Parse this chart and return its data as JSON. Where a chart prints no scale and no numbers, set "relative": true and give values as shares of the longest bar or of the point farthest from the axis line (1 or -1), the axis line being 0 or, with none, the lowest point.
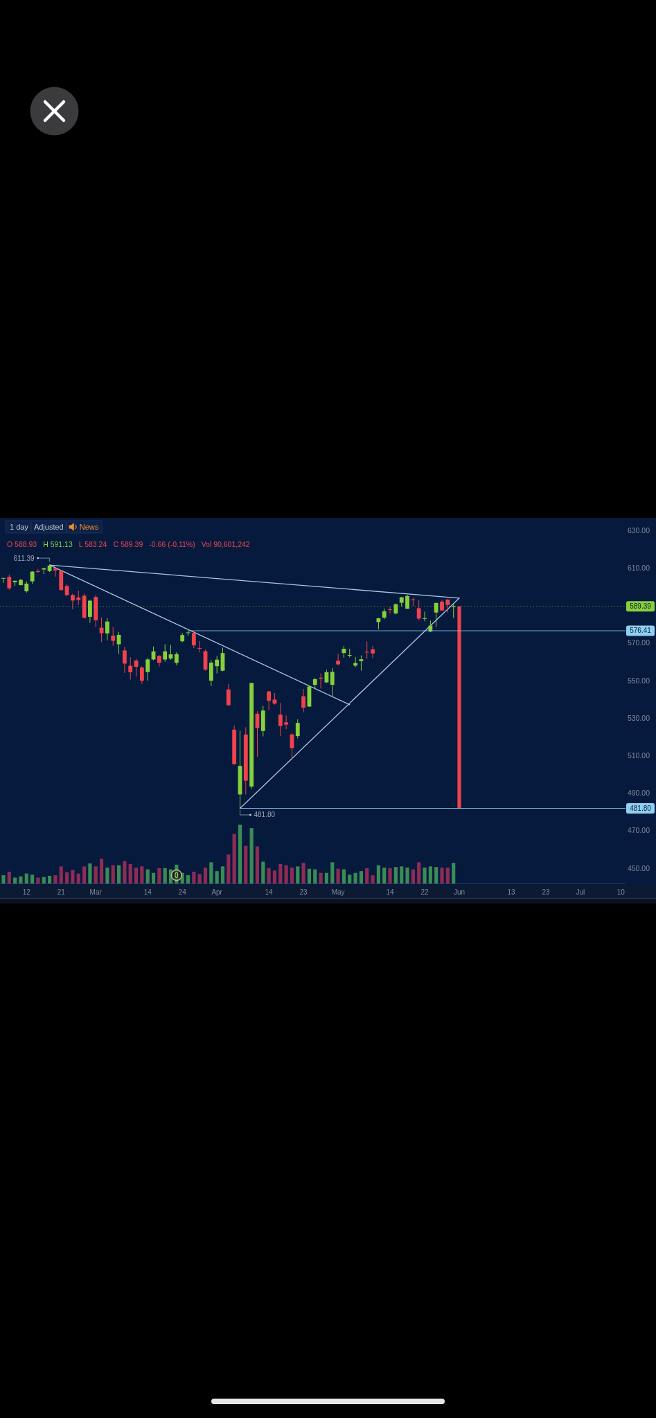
{
  "chart_data": [
    {
      "type": "candlestick",
      "categories": [
        null,
        null,
        null,
        null,
        "12",
        null,
        null,
        null,
        null,
        null,
        "21",
        null,
        null,
        null,
        null,
        null,
        "Mar",
        null,
        null,
        null,
        null,
        null,
        null,
        null,
        null,
        "14",
        null,
        null,
        null,
        null,
        null,
        "24",
        null,
        null,
        null,
        null,
        null,
        "Apr",
        null,
        null,
        null,
        null,
        null,
        null,
        null,
        null,
        "14",
        null,
        null,
        null,
        null,
        null,
        "23",
        null,
        null,
        null,
        null,
        null,
        "May",
        null,
        null,
        null,
        null,
        null,
        null,
        null,
        null,
        "14",
        null,
        null,
        null,
        null,
        null,
        "22",
        null,
        null,
        null,
        null,
        null,
        "Jun",
        null,
        null,
        null,
        null,
        null,
        null,
        null,
        null,
        "13",
        null,
        null,
        null,
        null,
        null,
        "23",
        null,
        null,
        null,
        null,
        null,
        "Jul",
        null,
        null,
        null,
        null,
        null,
        null,
        "10"
      ],
      "ohlc": [
        [
          604.2,
          604.6,
          601.9,
          604.5
        ],
        [
          605.1,
          606.3,
          598.2,
          599.0
        ],
        [
          602.2,
          603.1,
          600.3,
          603.0
        ],
        [
          600.7,
          604.0,
          600.6,
          603.5
        ],
        [
          597.4,
          602.7,
          596.7,
          601.5
        ],
        [
          602.7,
          608.1,
          601.4,
          607.9
        ],
        [
          608.1,
          609.2,
          607.2,
          607.9
        ],
        [
          609.0,
          609.7,
          606.6,
          609.7
        ],
        [
          608.2,
          611.39,
          607.7,
          611.1
        ],
        [
          609.7,
          609.8,
          605.2,
          608.5
        ],
        [
          608.3,
          608.5,
          597.7,
          598.1
        ],
        [
          600.2,
          601.2,
          594.7,
          595.4
        ],
        [
          595.4,
          596.1,
          587.8,
          592.5
        ],
        [
          594.1,
          597.8,
          590.1,
          592.8
        ],
        [
          595.1,
          596.2,
          582.9,
          583.3
        ],
        [
          583.8,
          592.9,
          580.7,
          592.4
        ],
        [
          594.4,
          595.5,
          578.2,
          582.0
        ],
        [
          578.0,
          583.6,
          570.5,
          575.1
        ],
        [
          575.0,
          583.1,
          571.4,
          581.3
        ],
        [
          573.8,
          578.4,
          568.4,
          571.0
        ],
        [
          569.2,
          575.7,
          563.9,
          574.2
        ],
        [
          565.9,
          567.8,
          553.9,
          558.9
        ],
        [
          557.7,
          562.3,
          550.4,
          554.3
        ],
        [
          560.5,
          561.4,
          552.0,
          557.2
        ],
        [
          556.8,
          557.4,
          548.0,
          549.8
        ],
        [
          554.4,
          562.1,
          549.8,
          561.1
        ],
        [
          561.1,
          568.0,
          560.7,
          565.4
        ],
        [
          563.1,
          563.3,
          557.4,
          559.3
        ],
        [
          561.1,
          569.2,
          559.9,
          565.4
        ],
        [
          561.6,
          568.9,
          560.9,
          563.8
        ],
        [
          559.3,
          564.9,
          558.0,
          564.0
        ],
        [
          570.8,
          575.2,
          570.2,
          574.1
        ],
        [
          575.3,
          576.41,
          573.7,
          575.5
        ],
        [
          575.2,
          576.3,
          567.2,
          568.6
        ],
        [
          567.2,
          570.9,
          564.9,
          567.1
        ],
        [
          565.5,
          566.3,
          555.1,
          555.7
        ],
        [
          549.8,
          560.7,
          546.9,
          559.4
        ],
        [
          557.5,
          562.9,
          553.7,
          561.0
        ],
        [
          555.1,
          567.4,
          554.8,
          564.5
        ],
        [
          545.1,
          548.0,
          536.7,
          536.7
        ],
        [
          523.7,
          525.9,
          505.1,
          505.3
        ],
        [
          489.2,
          523.2,
          481.8,
          504.4
        ],
        [
          521.1,
          525.0,
          489.2,
          496.5
        ],
        [
          493.4,
          548.6,
          492.1,
          548.6
        ],
        [
          532.2,
          533.5,
          509.3,
          524.6
        ],
        [
          523.0,
          536.4,
          520.1,
          533.9
        ],
        [
          544.1,
          544.3,
          533.9,
          539.1
        ],
        [
          539.7,
          543.2,
          537.0,
          537.6
        ],
        [
          531.7,
          537.9,
          520.3,
          525.7
        ],
        [
          527.6,
          531.2,
          523.9,
          526.4
        ],
        [
          521.2,
          521.7,
          507.5,
          513.9
        ],
        [
          520.3,
          529.2,
          519.1,
          527.3
        ],
        [
          541.5,
          545.4,
          533.0,
          535.4
        ],
        [
          536.0,
          547.1,
          535.9,
          546.7
        ],
        [
          547.6,
          551.2,
          545.2,
          550.6
        ],
        [
          551.4,
          553.6,
          545.6,
          550.9
        ],
        [
          548.9,
          555.5,
          548.6,
          554.3
        ],
        [
          547.6,
          556.5,
          541.5,
          554.5
        ],
        [
          560.4,
          564.1,
          557.9,
          558.5
        ],
        [
          564.5,
          568.3,
          562.0,
          566.8
        ],
        [
          563.1,
          566.8,
          562.2,
          563.5
        ],
        [
          557.8,
          562.5,
          557.0,
          559.2
        ],
        [
          560.2,
          563.3,
          555.1,
          561.2
        ],
        [
          565.2,
          570.7,
          561.5,
          565.1
        ],
        [
          566.5,
          568.3,
          561.8,
          564.3
        ],
        [
          581.0,
          583.4,
          577.1,
          583.0
        ],
        [
          583.4,
          588.2,
          582.6,
          586.8
        ],
        [
          587.8,
          589.0,
          585.5,
          587.6
        ],
        [
          585.6,
          591.0,
          585.1,
          590.5
        ],
        [
          591.3,
          594.5,
          589.3,
          594.2
        ],
        [
          588.1,
          595.5,
          588.1,
          594.9
        ],
        [
          593.1,
          594.1,
          589.6,
          592.9
        ],
        [
          588.4,
          592.6,
          581.8,
          582.9
        ],
        [
          582.7,
          586.6,
          581.4,
          583.1
        ],
        [
          576.0,
          581.8,
          575.6,
          579.1
        ],
        [
          586.1,
          591.3,
          578.4,
          591.2
        ],
        [
          591.9,
          592.7,
          587.0,
          587.2
        ],
        [
          593.0,
          593.2,
          586.1,
          590.1
        ],
        [
          588.93,
          591.13,
          583.24,
          589.39
        ],
        null,
        null,
        null,
        null,
        null,
        null,
        null,
        null,
        null,
        null,
        null,
        null,
        null,
        null,
        null,
        null,
        null,
        null,
        null,
        null,
        null,
        null,
        null,
        null,
        null,
        null,
        null,
        null,
        null
      ],
      "colors": [
        "#86d03c",
        "#f0424c",
        "#86d03c",
        "#86d03c",
        "#86d03c",
        "#86d03c",
        "#f0424c",
        "#86d03c",
        "#86d03c",
        "#f0424c",
        "#f0424c",
        "#f0424c",
        "#f0424c",
        "#f0424c",
        "#f0424c",
        "#86d03c",
        "#f0424c",
        "#f0424c",
        "#86d03c",
        "#f0424c",
        "#86d03c",
        "#f0424c",
        "#f0424c",
        "#f0424c",
        "#f0424c",
        "#86d03c",
        "#86d03c",
        "#f0424c",
        "#86d03c",
        "#86d03c",
        "#86d03c",
        "#86d03c",
        "#86d03c",
        "#f0424c",
        "#f0424c",
        "#f0424c",
        "#86d03c",
        "#86d03c",
        "#86d03c",
        "#f0424c",
        "#f0424c",
        "#86d03c",
        "#f0424c",
        "#86d03c",
        "#f0424c",
        "#86d03c",
        "#f0424c",
        "#f0424c",
        "#f0424c",
        "#f0424c",
        "#f0424c",
        "#86d03c",
        "#f0424c",
        "#86d03c",
        "#86d03c",
        "#f0424c",
        "#86d03c",
        "#86d03c",
        "#f0424c",
        "#86d03c",
        "#86d03c",
        "#86d03c",
        "#86d03c",
        "#f0424c",
        "#f0424c",
        "#86d03c",
        "#86d03c",
        "#f0424c",
        "#86d03c",
        "#86d03c",
        "#86d03c",
        "#f0424c",
        "#f0424c",
        "#86d03c",
        "#86d03c",
        "#86d03c",
        "#f0424c",
        "#f0424c",
        "#86d03c",
        null,
        null,
        null,
        null,
        null,
        null,
        null,
        null,
        null,
        null,
        null,
        null,
        null,
        null,
        null,
        null,
        null,
        null,
        null,
        null,
        null,
        null,
        null,
        null,
        null,
        null,
        null,
        null,
        null
      ],
      "ylim": [
        450,
        636.5
      ],
      "yticks": [
        {
          "value": 630,
          "label": "630.00"
        },
        {
          "value": 610,
          "label": "610.00"
        },
        {
          "value": 570,
          "label": "570.00"
        },
        {
          "value": 550,
          "label": "550.00"
        },
        {
          "value": 530,
          "label": "530.00"
        },
        {
          "value": 510,
          "label": "510.00"
        },
        {
          "value": 490,
          "label": "490.00"
        },
        {
          "value": 470,
          "label": "470.00"
        },
        {
          "value": 450,
          "label": "450.00"
        }
      ],
      "series": [
        {
          "type": "line",
          "color": "#a9c6e4",
          "values": [
            null,
            null,
            null,
            null,
            null,
            null,
            null,
            null,
            611.4,
            null,
            null,
            null,
            null,
            null,
            null,
            null,
            null,
            null,
            null,
            null,
            null,
            null,
            null,
            null,
            null,
            null,
            null,
            null,
            null,
            null,
            null,
            null,
            null,
            null,
            null,
            null,
            null,
            null,
            null,
            null,
            null,
            null,
            null,
            null,
            null,
            null,
            null,
            null,
            null,
            null,
            null,
            null,
            null,
            null,
            null,
            null,
            null,
            null,
            null,
            null,
            null,
            null,
            null,
            null,
            null,
            null,
            null,
            null,
            null,
            null,
            null,
            null,
            null,
            null,
            null,
            null,
            null,
            null,
            null,
            593.8,
            null,
            null,
            null,
            null,
            null,
            null,
            null,
            null,
            null,
            null,
            null,
            null,
            null,
            null,
            null,
            null,
            null,
            null,
            null,
            null,
            null,
            null,
            null,
            null,
            null,
            null,
            null,
            null
          ]
        },
        {
          "type": "line",
          "color": "#a9c6e4",
          "values": [
            null,
            null,
            null,
            null,
            null,
            null,
            null,
            null,
            611.4,
            null,
            null,
            null,
            null,
            null,
            null,
            null,
            null,
            null,
            null,
            null,
            null,
            null,
            null,
            null,
            null,
            null,
            null,
            null,
            null,
            null,
            null,
            null,
            null,
            null,
            null,
            null,
            null,
            null,
            null,
            null,
            null,
            null,
            null,
            null,
            null,
            null,
            null,
            null,
            null,
            null,
            null,
            null,
            null,
            null,
            null,
            null,
            null,
            null,
            null,
            null,
            537.0,
            null,
            null,
            null,
            null,
            null,
            null,
            null,
            null,
            null,
            null,
            null,
            null,
            null,
            null,
            null,
            null,
            null,
            null,
            null,
            null,
            null,
            null,
            null,
            null,
            null,
            null,
            null,
            null,
            null,
            null,
            null,
            null,
            null,
            null,
            null,
            null,
            null,
            null,
            null,
            null,
            null,
            null,
            null,
            null,
            null,
            null,
            null
          ]
        },
        {
          "type": "line",
          "color": "#a9c6e4",
          "values": [
            null,
            null,
            null,
            null,
            null,
            null,
            null,
            null,
            null,
            null,
            null,
            null,
            null,
            null,
            null,
            null,
            null,
            null,
            null,
            null,
            null,
            null,
            null,
            null,
            null,
            null,
            null,
            null,
            null,
            null,
            null,
            null,
            null,
            null,
            null,
            null,
            null,
            null,
            null,
            null,
            null,
            481.8,
            null,
            null,
            null,
            null,
            null,
            null,
            null,
            null,
            null,
            null,
            null,
            null,
            null,
            null,
            null,
            null,
            null,
            null,
            null,
            null,
            null,
            null,
            null,
            null,
            null,
            null,
            null,
            null,
            null,
            null,
            null,
            null,
            null,
            null,
            null,
            null,
            null,
            593.8,
            null,
            null,
            null,
            null,
            null,
            null,
            null,
            null,
            null,
            null,
            null,
            null,
            null,
            null,
            null,
            null,
            null,
            null,
            null,
            null,
            null,
            null,
            null,
            null,
            null,
            null,
            null,
            null
          ]
        },
        {
          "type": "bar",
          "color": "#f0424c",
          "base": [
            null,
            null,
            null,
            null,
            null,
            null,
            null,
            null,
            null,
            null,
            null,
            null,
            null,
            null,
            null,
            null,
            null,
            null,
            null,
            null,
            null,
            null,
            null,
            null,
            null,
            null,
            null,
            null,
            null,
            null,
            null,
            null,
            null,
            null,
            null,
            null,
            null,
            null,
            null,
            null,
            null,
            null,
            null,
            null,
            null,
            null,
            null,
            null,
            null,
            null,
            null,
            null,
            null,
            null,
            null,
            null,
            null,
            null,
            null,
            null,
            null,
            null,
            null,
            null,
            null,
            null,
            null,
            null,
            null,
            null,
            null,
            null,
            null,
            null,
            null,
            null,
            null,
            null,
            null,
            481.8,
            null,
            null,
            null,
            null,
            null,
            null,
            null,
            null,
            null,
            null,
            null,
            null,
            null,
            null,
            null,
            null,
            null,
            null,
            null,
            null,
            null,
            null,
            null,
            null,
            null,
            null,
            null,
            null
          ],
          "values": [
            null,
            null,
            null,
            null,
            null,
            null,
            null,
            null,
            null,
            null,
            null,
            null,
            null,
            null,
            null,
            null,
            null,
            null,
            null,
            null,
            null,
            null,
            null,
            null,
            null,
            null,
            null,
            null,
            null,
            null,
            null,
            null,
            null,
            null,
            null,
            null,
            null,
            null,
            null,
            null,
            null,
            null,
            null,
            null,
            null,
            null,
            null,
            null,
            null,
            null,
            null,
            null,
            null,
            null,
            null,
            null,
            null,
            null,
            null,
            null,
            null,
            null,
            null,
            null,
            null,
            null,
            null,
            null,
            null,
            null,
            null,
            null,
            null,
            null,
            null,
            null,
            null,
            null,
            null,
            107.6,
            null,
            null,
            null,
            null,
            null,
            null,
            null,
            null,
            null,
            null,
            null,
            null,
            null,
            null,
            null,
            null,
            null,
            null,
            null,
            null,
            null,
            null,
            null,
            null,
            null,
            null,
            null,
            null
          ]
        }
      ],
      "ref_lines": [
        {
          "axis": "y",
          "value": 589.39,
          "label": "589.39",
          "color": "#86d03c",
          "line_style": "dotted"
        },
        {
          "axis": "y",
          "value": 576.41,
          "label": "576.41",
          "color": "#8fd0f2"
        },
        {
          "axis": "y",
          "value": 481.8,
          "label": "481.80",
          "color": "#8fd0f2"
        }
      ],
      "annotations": [
        "1 day",
        "Adjusted",
        "News",
        "O 588.93",
        "H 591.13",
        "L 583.24",
        "C 589.39",
        "-0.66 (-0.11%)",
        "Vol 90,601,242",
        "611.39",
        "481.80"
      ]
    },
    {
      "type": "bar",
      "relative": true,
      "categories": [
        null,
        null,
        null,
        null,
        null,
        null,
        null,
        null,
        null,
        null,
        null,
        null,
        null,
        null,
        null,
        null,
        null,
        null,
        null,
        null,
        null,
        null,
        null,
        null,
        null,
        null,
        null,
        null,
        null,
        null,
        null,
        null,
        null,
        null,
        null,
        null,
        null,
        null,
        null,
        null,
        null,
        null,
        null,
        null,
        null,
        null,
        null,
        null,
        null,
        null,
        null,
        null,
        null,
        null,
        null,
        null,
        null,
        null,
        null,
        null,
        null,
        null,
        null,
        null,
        null,
        null,
        null,
        null,
        null,
        null,
        null,
        null,
        null,
        null,
        null,
        null,
        null,
        null,
        null,
        null,
        null,
        null,
        null,
        null,
        null,
        null,
        null,
        null,
        null,
        null,
        null,
        null,
        null,
        null,
        null,
        null,
        null,
        null,
        null,
        null,
        null,
        null,
        null,
        null,
        null,
        null,
        null,
        null
      ],
      "values": [
        0.14,
        0.2,
        0.1,
        0.12,
        0.17,
        0.15,
        0.1,
        0.11,
        0.13,
        0.14,
        0.29,
        0.19,
        0.23,
        0.17,
        0.29,
        0.34,
        0.29,
        0.42,
        0.27,
        0.31,
        0.31,
        0.38,
        0.33,
        0.27,
        0.29,
        0.24,
        0.18,
        0.26,
        0.26,
        0.24,
        0.32,
        0.18,
        0.14,
        0.2,
        0.16,
        0.27,
        0.36,
        0.21,
        0.29,
        0.49,
        0.84,
        1,
        0.64,
        0.94,
        0.63,
        0.37,
        0.26,
        0.22,
        0.33,
        0.31,
        0.27,
        0.29,
        0.35,
        0.25,
        0.24,
        0.18,
        0.18,
        0.36,
        0.25,
        0.24,
        0.15,
        0.18,
        0.21,
        0.26,
        0.14,
        0.31,
        0.27,
        0.26,
        0.28,
        0.29,
        0.27,
        0.24,
        0.36,
        0.27,
        0.29,
        0.28,
        0.27,
        0.27,
        0.35,
        null,
        null,
        null,
        null,
        null,
        null,
        null,
        null,
        null,
        null,
        null,
        null,
        null,
        null,
        null,
        null,
        null,
        null,
        null,
        null,
        null,
        null,
        null,
        null,
        null,
        null,
        null,
        null,
        null
      ],
      "colors": [
        "#3a8c55",
        "#8e2c55",
        "#3a8c55",
        "#3a8c55",
        "#3a8c55",
        "#3a8c55",
        "#8e2c55",
        "#3a8c55",
        "#3a8c55",
        "#8e2c55",
        "#8e2c55",
        "#8e2c55",
        "#8e2c55",
        "#8e2c55",
        "#8e2c55",
        "#3a8c55",
        "#8e2c55",
        "#8e2c55",
        "#3a8c55",
        "#8e2c55",
        "#3a8c55",
        "#8e2c55",
        "#8e2c55",
        "#8e2c55",
        "#8e2c55",
        "#3a8c55",
        "#3a8c55",
        "#8e2c55",
        "#3a8c55",
        "#3a8c55",
        "#3a8c55",
        "#3a8c55",
        "#3a8c55",
        "#8e2c55",
        "#8e2c55",
        "#8e2c55",
        "#3a8c55",
        "#3a8c55",
        "#3a8c55",
        "#8e2c55",
        "#8e2c55",
        "#3a8c55",
        "#8e2c55",
        "#3a8c55",
        "#8e2c55",
        "#3a8c55",
        "#8e2c55",
        "#8e2c55",
        "#8e2c55",
        "#8e2c55",
        "#8e2c55",
        "#3a8c55",
        "#8e2c55",
        "#3a8c55",
        "#3a8c55",
        "#8e2c55",
        "#3a8c55",
        "#3a8c55",
        "#8e2c55",
        "#3a8c55",
        "#3a8c55",
        "#3a8c55",
        "#3a8c55",
        "#8e2c55",
        "#8e2c55",
        "#3a8c55",
        "#3a8c55",
        "#8e2c55",
        "#3a8c55",
        "#3a8c55",
        "#3a8c55",
        "#8e2c55",
        "#8e2c55",
        "#3a8c55",
        "#3a8c55",
        "#3a8c55",
        "#8e2c55",
        "#8e2c55",
        "#3a8c55",
        null,
        null,
        null,
        null,
        null,
        null,
        null,
        null,
        null,
        null,
        null,
        null,
        null,
        null,
        null,
        null,
        null,
        null,
        null,
        null,
        null,
        null,
        null,
        null,
        null,
        null,
        null,
        null,
        null
      ],
      "annotations": [
        "0"
      ]
    }
  ]
}
